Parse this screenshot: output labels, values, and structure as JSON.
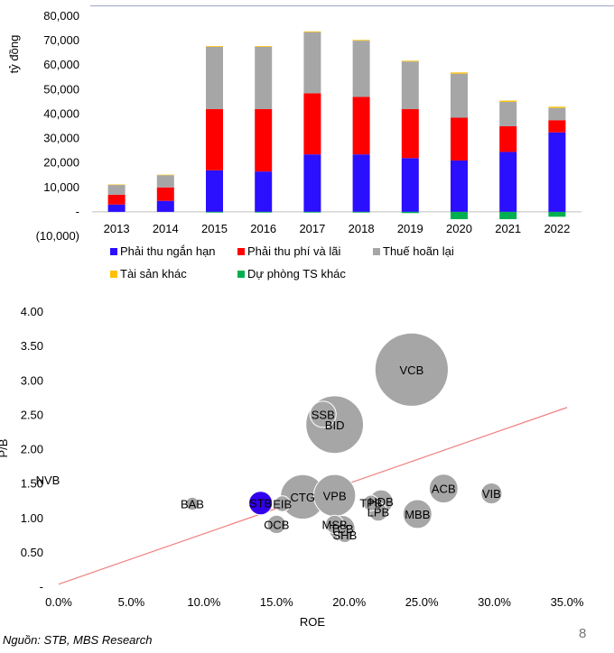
{
  "chart_data": [
    {
      "type": "bar",
      "stacked": true,
      "ylabel": "tỷ đồng",
      "ylim": [
        -10000,
        80000
      ],
      "yticks": [
        -10000,
        0,
        10000,
        20000,
        30000,
        40000,
        50000,
        60000,
        70000,
        80000
      ],
      "ytick_labels": [
        "(10,000)",
        "-",
        "10,000",
        "20,000",
        "30,000",
        "40,000",
        "50,000",
        "60,000",
        "70,000",
        "80,000"
      ],
      "categories": [
        "2013",
        "2014",
        "2015",
        "2016",
        "2017",
        "2018",
        "2019",
        "2020",
        "2021",
        "2022"
      ],
      "series": [
        {
          "name": "Phải thu ngắn hạn",
          "color": "#2b0fff",
          "values": [
            3000,
            4500,
            17000,
            16500,
            23500,
            23500,
            22000,
            21000,
            24500,
            32500
          ]
        },
        {
          "name": "Phải thu phí và lãi",
          "color": "#ff0000",
          "values": [
            4000,
            5500,
            25000,
            25500,
            25000,
            23500,
            20000,
            17500,
            10500,
            5000
          ]
        },
        {
          "name": "Thuế hoãn lại",
          "color": "#a6a6a6",
          "values": [
            4000,
            5000,
            25500,
            25500,
            25000,
            23000,
            19500,
            18000,
            10000,
            5000
          ]
        },
        {
          "name": "Tài sản khác",
          "color": "#ffc000",
          "values": [
            200,
            200,
            300,
            300,
            300,
            300,
            300,
            500,
            500,
            500
          ]
        },
        {
          "name": "Dự phòng TS khác",
          "color": "#00b050",
          "values": [
            0,
            0,
            -300,
            -300,
            -300,
            -300,
            -500,
            -3000,
            -3000,
            -2000
          ]
        }
      ],
      "legend_position": "bottom"
    },
    {
      "type": "scatter",
      "subtype": "bubble",
      "xlabel": "ROE",
      "ylabel": "P/B",
      "xlim": [
        0,
        0.35
      ],
      "ylim": [
        0,
        4
      ],
      "xticks": [
        0,
        0.05,
        0.1,
        0.15,
        0.2,
        0.25,
        0.3,
        0.35
      ],
      "xtick_labels": [
        "0.0%",
        "5.0%",
        "10.0%",
        "15.0%",
        "20.0%",
        "25.0%",
        "30.0%",
        "35.0%"
      ],
      "yticks": [
        0,
        0.5,
        1,
        1.5,
        2,
        2.5,
        3,
        3.5,
        4
      ],
      "ytick_labels": [
        "-",
        "0.50",
        "1.00",
        "1.50",
        "2.00",
        "2.50",
        "3.00",
        "3.50",
        "4.00"
      ],
      "trendline": {
        "color": "#f08080",
        "from": [
          0,
          0.03
        ],
        "to": [
          0.35,
          2.6
        ]
      },
      "points": [
        {
          "label": "VCB",
          "x": 0.243,
          "y": 3.15,
          "size": 28,
          "color": "#a6a6a6"
        },
        {
          "label": "SSB",
          "x": 0.182,
          "y": 2.5,
          "size": 10,
          "color": "#a6a6a6"
        },
        {
          "label": "BID",
          "x": 0.19,
          "y": 2.35,
          "size": 22,
          "color": "#a6a6a6"
        },
        {
          "label": "NVB",
          "x": 0.0,
          "y": 1.55,
          "size": 0,
          "color": "#a6a6a6"
        },
        {
          "label": "ACB",
          "x": 0.265,
          "y": 1.42,
          "size": 11,
          "color": "#a6a6a6"
        },
        {
          "label": "VIB",
          "x": 0.298,
          "y": 1.35,
          "size": 8,
          "color": "#a6a6a6"
        },
        {
          "label": "VPB",
          "x": 0.19,
          "y": 1.32,
          "size": 16,
          "color": "#a6a6a6"
        },
        {
          "label": "CTG",
          "x": 0.168,
          "y": 1.3,
          "size": 17,
          "color": "#a6a6a6"
        },
        {
          "label": "HDB",
          "x": 0.222,
          "y": 1.23,
          "size": 9,
          "color": "#a6a6a6"
        },
        {
          "label": "TPB",
          "x": 0.215,
          "y": 1.21,
          "size": 6,
          "color": "#a6a6a6"
        },
        {
          "label": "BAB",
          "x": 0.092,
          "y": 1.2,
          "size": 5,
          "color": "#a6a6a6"
        },
        {
          "label": "STB",
          "x": 0.139,
          "y": 1.21,
          "size": 9,
          "color": "#3300ee"
        },
        {
          "label": "EIB",
          "x": 0.154,
          "y": 1.2,
          "size": 6,
          "color": "#a6a6a6"
        },
        {
          "label": "LPB",
          "x": 0.22,
          "y": 1.08,
          "size": 7,
          "color": "#a6a6a6"
        },
        {
          "label": "MBB",
          "x": 0.247,
          "y": 1.05,
          "size": 11,
          "color": "#a6a6a6"
        },
        {
          "label": "OCB",
          "x": 0.15,
          "y": 0.9,
          "size": 7,
          "color": "#a6a6a6"
        },
        {
          "label": "MSB",
          "x": 0.19,
          "y": 0.9,
          "size": 7,
          "color": "#a6a6a6"
        },
        {
          "label": "TCB",
          "x": 0.195,
          "y": 0.84,
          "size": 10,
          "color": "#a6a6a6"
        },
        {
          "label": "SHB",
          "x": 0.197,
          "y": 0.75,
          "size": 6,
          "color": "#a6a6a6"
        }
      ]
    }
  ],
  "footer": {
    "source": "Nguồn: STB, MBS Research",
    "page_number": "8"
  }
}
